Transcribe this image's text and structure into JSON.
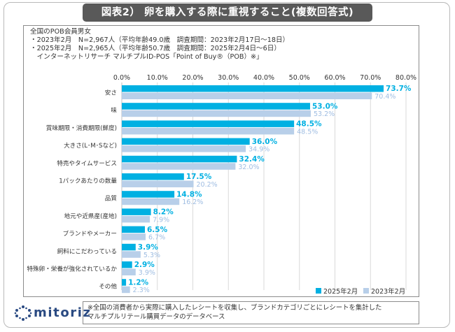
{
  "title": "図表2） 卵を購入する際に重視すること(複数回答式)",
  "notes": [
    "全国のPOB会員男女",
    "・2023年2月　N=2,967人（平均年齢49.0歳　調査期間：2023年2月17日～18日）",
    "・2025年2月　N=2,965人（平均年齢50.7歳　調査期間：2025年2月4日～6日）",
    "　インターネットリサーチ マルチプルID-POS「Point of Buy®（POB）※」"
  ],
  "footnote": [
    "※全国の消費者から実際に購入したレシートを収集し、ブランドカテゴリごとにレシートを集計した",
    "マルチプルリテール購買データのデータベース"
  ],
  "logo_text": "mitoriz",
  "colors": {
    "series_2025": "#00b0e2",
    "series_2023": "#b8cfe9",
    "title_bg": "#595959",
    "logo": "#2a4a82"
  },
  "chart_data": {
    "type": "bar",
    "orientation": "horizontal",
    "categories": [
      "安さ",
      "味",
      "賞味期限・消費期限(鮮度)",
      "大きさ(L･M･Sなど)",
      "特売やタイムサービス",
      "1パックあたりの数量",
      "品質",
      "地元や近県産(産地)",
      "ブランドやメーカー",
      "飼料にこだわっている",
      "特殊卵・栄養が強化されているか",
      "その他"
    ],
    "series": [
      {
        "name": "2025年2月",
        "values": [
          73.7,
          53.0,
          48.5,
          36.0,
          32.4,
          17.5,
          14.8,
          8.2,
          6.5,
          3.9,
          2.9,
          1.2
        ],
        "labels": [
          "73.7%",
          "53.0%",
          "48.5%",
          "36.0%",
          "32.4%",
          "17.5%",
          "14.8%",
          "8.2%",
          "6.5%",
          "3.9%",
          "2.9%",
          "1.2%"
        ]
      },
      {
        "name": "2023年2月",
        "values": [
          70.4,
          53.2,
          48.5,
          34.9,
          32.0,
          20.2,
          16.2,
          7.9,
          6.7,
          5.3,
          3.9,
          2.3
        ],
        "labels": [
          "70.4%",
          "53.2%",
          "48.5%",
          "34.9%",
          "32.0%",
          "20.2%",
          "16.2%",
          "7.9%",
          "6.7%",
          "5.3%",
          "3.9%",
          "2.3%"
        ]
      }
    ],
    "xticks": [
      "0.0%",
      "10.0%",
      "20.0%",
      "30.0%",
      "40.0%",
      "50.0%",
      "60.0%",
      "70.0%",
      "80.0%"
    ],
    "xlim": [
      0,
      80
    ],
    "grid": true,
    "legend": "bottom-right"
  }
}
